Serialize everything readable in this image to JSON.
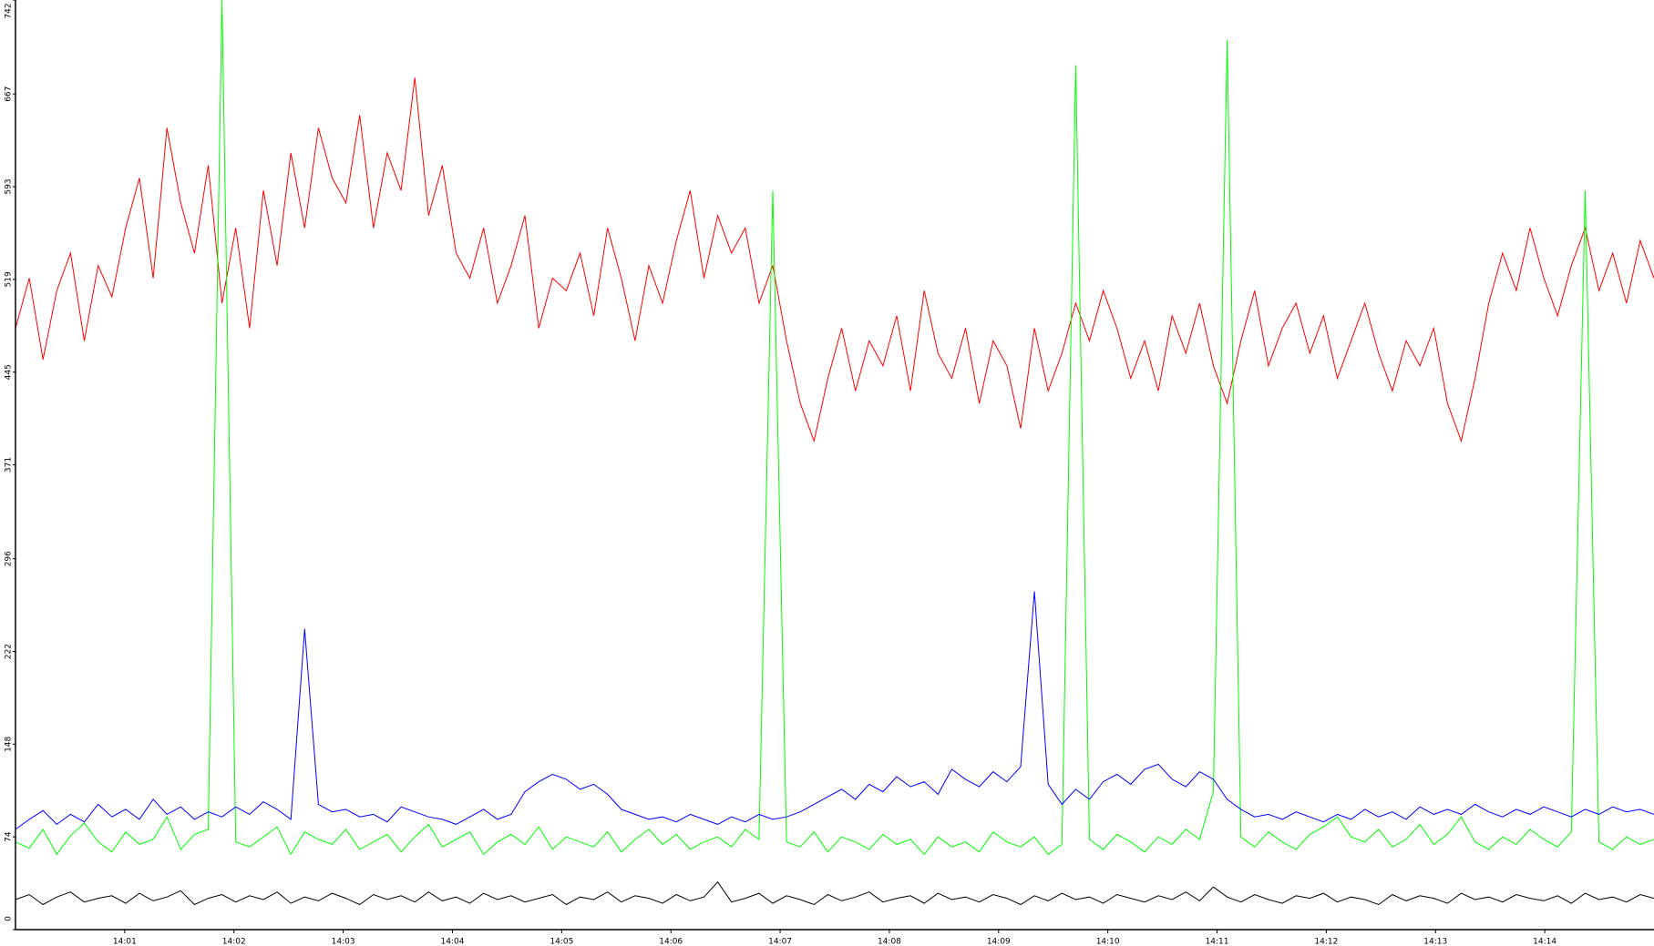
{
  "chart_data": {
    "type": "line",
    "xlim": [
      "14:00",
      "14:15"
    ],
    "xticks": [
      "14:01",
      "14:02",
      "14:03",
      "14:04",
      "14:05",
      "14:06",
      "14:07",
      "14:08",
      "14:09",
      "14:10",
      "14:11",
      "14:12",
      "14:13",
      "14:14"
    ],
    "ylim": [
      0,
      742
    ],
    "yticks": [
      0,
      74,
      148,
      222,
      296,
      371,
      445,
      519,
      593,
      667,
      742
    ],
    "grid": false,
    "series": [
      {
        "color": "#ff0000",
        "values": [
          480,
          520,
          455,
          510,
          540,
          470,
          530,
          505,
          560,
          600,
          520,
          640,
          580,
          540,
          610,
          500,
          560,
          480,
          590,
          530,
          620,
          560,
          640,
          600,
          580,
          650,
          560,
          620,
          590,
          680,
          570,
          610,
          540,
          520,
          560,
          500,
          530,
          570,
          480,
          520,
          510,
          540,
          490,
          560,
          520,
          470,
          530,
          500,
          550,
          590,
          520,
          570,
          540,
          560,
          500,
          530,
          470,
          420,
          390,
          440,
          480,
          430,
          470,
          450,
          490,
          430,
          510,
          460,
          440,
          480,
          420,
          470,
          450,
          400,
          480,
          430,
          460,
          500,
          470,
          510,
          480,
          440,
          470,
          430,
          490,
          460,
          500,
          450,
          420,
          470,
          510,
          450,
          480,
          500,
          460,
          490,
          440,
          470,
          500,
          460,
          430,
          470,
          450,
          480,
          420,
          390,
          440,
          500,
          540,
          510,
          560,
          520,
          490,
          530,
          560,
          510,
          540,
          500,
          550,
          520
        ]
      },
      {
        "color": "#00ff00",
        "values": [
          70,
          65,
          80,
          60,
          75,
          85,
          70,
          62,
          78,
          68,
          72,
          90,
          64,
          76,
          80,
          742,
          70,
          66,
          74,
          82,
          60,
          78,
          72,
          68,
          80,
          64,
          70,
          76,
          62,
          74,
          84,
          66,
          72,
          78,
          60,
          70,
          76,
          68,
          82,
          64,
          74,
          70,
          66,
          78,
          62,
          72,
          80,
          68,
          76,
          64,
          70,
          74,
          66,
          80,
          72,
          590,
          70,
          66,
          78,
          62,
          74,
          70,
          64,
          76,
          68,
          72,
          60,
          74,
          66,
          70,
          62,
          78,
          70,
          66,
          74,
          60,
          68,
          690,
          72,
          64,
          76,
          70,
          62,
          74,
          68,
          80,
          72,
          110,
          710,
          74,
          66,
          78,
          70,
          64,
          76,
          82,
          90,
          74,
          70,
          80,
          66,
          72,
          84,
          68,
          76,
          90,
          70,
          64,
          74,
          68,
          80,
          72,
          66,
          78,
          590,
          70,
          64,
          74,
          68,
          72
        ]
      },
      {
        "color": "#0000ff",
        "values": [
          80,
          88,
          95,
          84,
          92,
          86,
          100,
          90,
          96,
          88,
          104,
          92,
          98,
          88,
          94,
          90,
          98,
          92,
          102,
          96,
          88,
          240,
          100,
          94,
          96,
          90,
          92,
          86,
          98,
          94,
          90,
          88,
          84,
          90,
          96,
          88,
          92,
          110,
          118,
          124,
          120,
          112,
          116,
          108,
          96,
          92,
          88,
          90,
          86,
          92,
          88,
          84,
          90,
          86,
          92,
          88,
          90,
          94,
          100,
          106,
          112,
          104,
          116,
          110,
          122,
          114,
          118,
          108,
          128,
          120,
          114,
          126,
          118,
          130,
          270,
          116,
          100,
          112,
          104,
          118,
          124,
          116,
          128,
          132,
          120,
          114,
          126,
          120,
          104,
          96,
          90,
          92,
          88,
          94,
          90,
          86,
          92,
          88,
          96,
          90,
          94,
          88,
          98,
          92,
          96,
          92,
          100,
          94,
          90,
          96,
          92,
          98,
          94,
          90,
          96,
          92,
          98,
          94,
          96,
          92
        ]
      },
      {
        "color": "#000000",
        "values": [
          24,
          28,
          20,
          26,
          30,
          22,
          25,
          27,
          21,
          29,
          23,
          26,
          31,
          20,
          25,
          28,
          22,
          27,
          24,
          30,
          21,
          26,
          23,
          29,
          25,
          20,
          28,
          24,
          27,
          22,
          30,
          23,
          26,
          21,
          29,
          24,
          27,
          22,
          25,
          28,
          20,
          26,
          24,
          30,
          22,
          27,
          25,
          21,
          28,
          23,
          26,
          38,
          22,
          25,
          29,
          21,
          27,
          24,
          20,
          28,
          23,
          26,
          30,
          22,
          25,
          27,
          21,
          29,
          24,
          26,
          22,
          28,
          25,
          20,
          27,
          23,
          29,
          24,
          26,
          21,
          28,
          25,
          22,
          27,
          24,
          30,
          23,
          34,
          26,
          22,
          28,
          24,
          21,
          27,
          25,
          29,
          22,
          26,
          24,
          20,
          28,
          23,
          27,
          25,
          21,
          29,
          24,
          26,
          22,
          28,
          25,
          23,
          27,
          21,
          29,
          24,
          26,
          22,
          28,
          25
        ]
      }
    ]
  }
}
